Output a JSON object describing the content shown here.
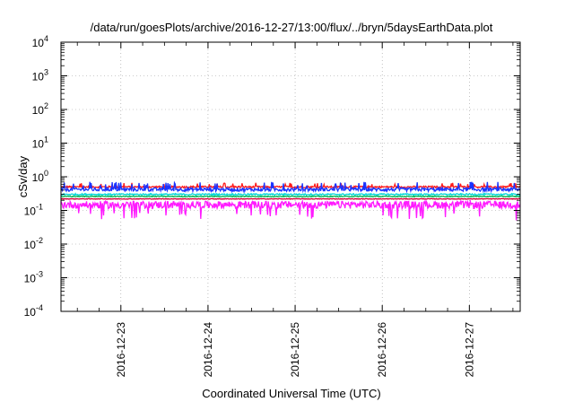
{
  "chart_data": {
    "type": "line",
    "title": "/data/run/goesPlots/archive/2016-12-27/13:00/flux/../bryn/5daysEarthData.plot",
    "xlabel": "Coordinated Universal Time (UTC)",
    "ylabel": "cSv/day",
    "yscale": "log",
    "ylim": [
      0.0001,
      10000
    ],
    "yticks": [
      {
        "value": 0.0001,
        "base": "10",
        "exp": "-4"
      },
      {
        "value": 0.001,
        "base": "10",
        "exp": "-3"
      },
      {
        "value": 0.01,
        "base": "10",
        "exp": "-2"
      },
      {
        "value": 0.1,
        "base": "10",
        "exp": "-1"
      },
      {
        "value": 1,
        "base": "10",
        "exp": "0"
      },
      {
        "value": 10,
        "base": "10",
        "exp": "1"
      },
      {
        "value": 100,
        "base": "10",
        "exp": "2"
      },
      {
        "value": 1000,
        "base": "10",
        "exp": "3"
      },
      {
        "value": 10000,
        "base": "10",
        "exp": "4"
      }
    ],
    "xlim": [
      "2016-12-22 07:30",
      "2016-12-27 14:00"
    ],
    "xticks": [
      {
        "value": "2016-12-23 00:00",
        "label": "2016-12-23"
      },
      {
        "value": "2016-12-24 00:00",
        "label": "2016-12-24"
      },
      {
        "value": "2016-12-25 00:00",
        "label": "2016-12-25"
      },
      {
        "value": "2016-12-26 00:00",
        "label": "2016-12-26"
      },
      {
        "value": "2016-12-27 00:00",
        "label": "2016-12-27"
      }
    ],
    "grid": true,
    "legend": "none",
    "series": [
      {
        "color": "#ff1a1a",
        "typical": 0.5,
        "spread": 0.06
      },
      {
        "color": "#1a33ff",
        "typical": 0.42,
        "spread": 0.12
      },
      {
        "color": "#00d6d6",
        "typical": 0.3,
        "spread": 0.05
      },
      {
        "color": "#00b34d",
        "typical": 0.26,
        "spread": 0.03
      },
      {
        "color": "#cc0033",
        "typical": 0.22,
        "spread": 0.02
      },
      {
        "color": "#ff1aff",
        "typical": 0.15,
        "spread": 0.25
      }
    ]
  }
}
